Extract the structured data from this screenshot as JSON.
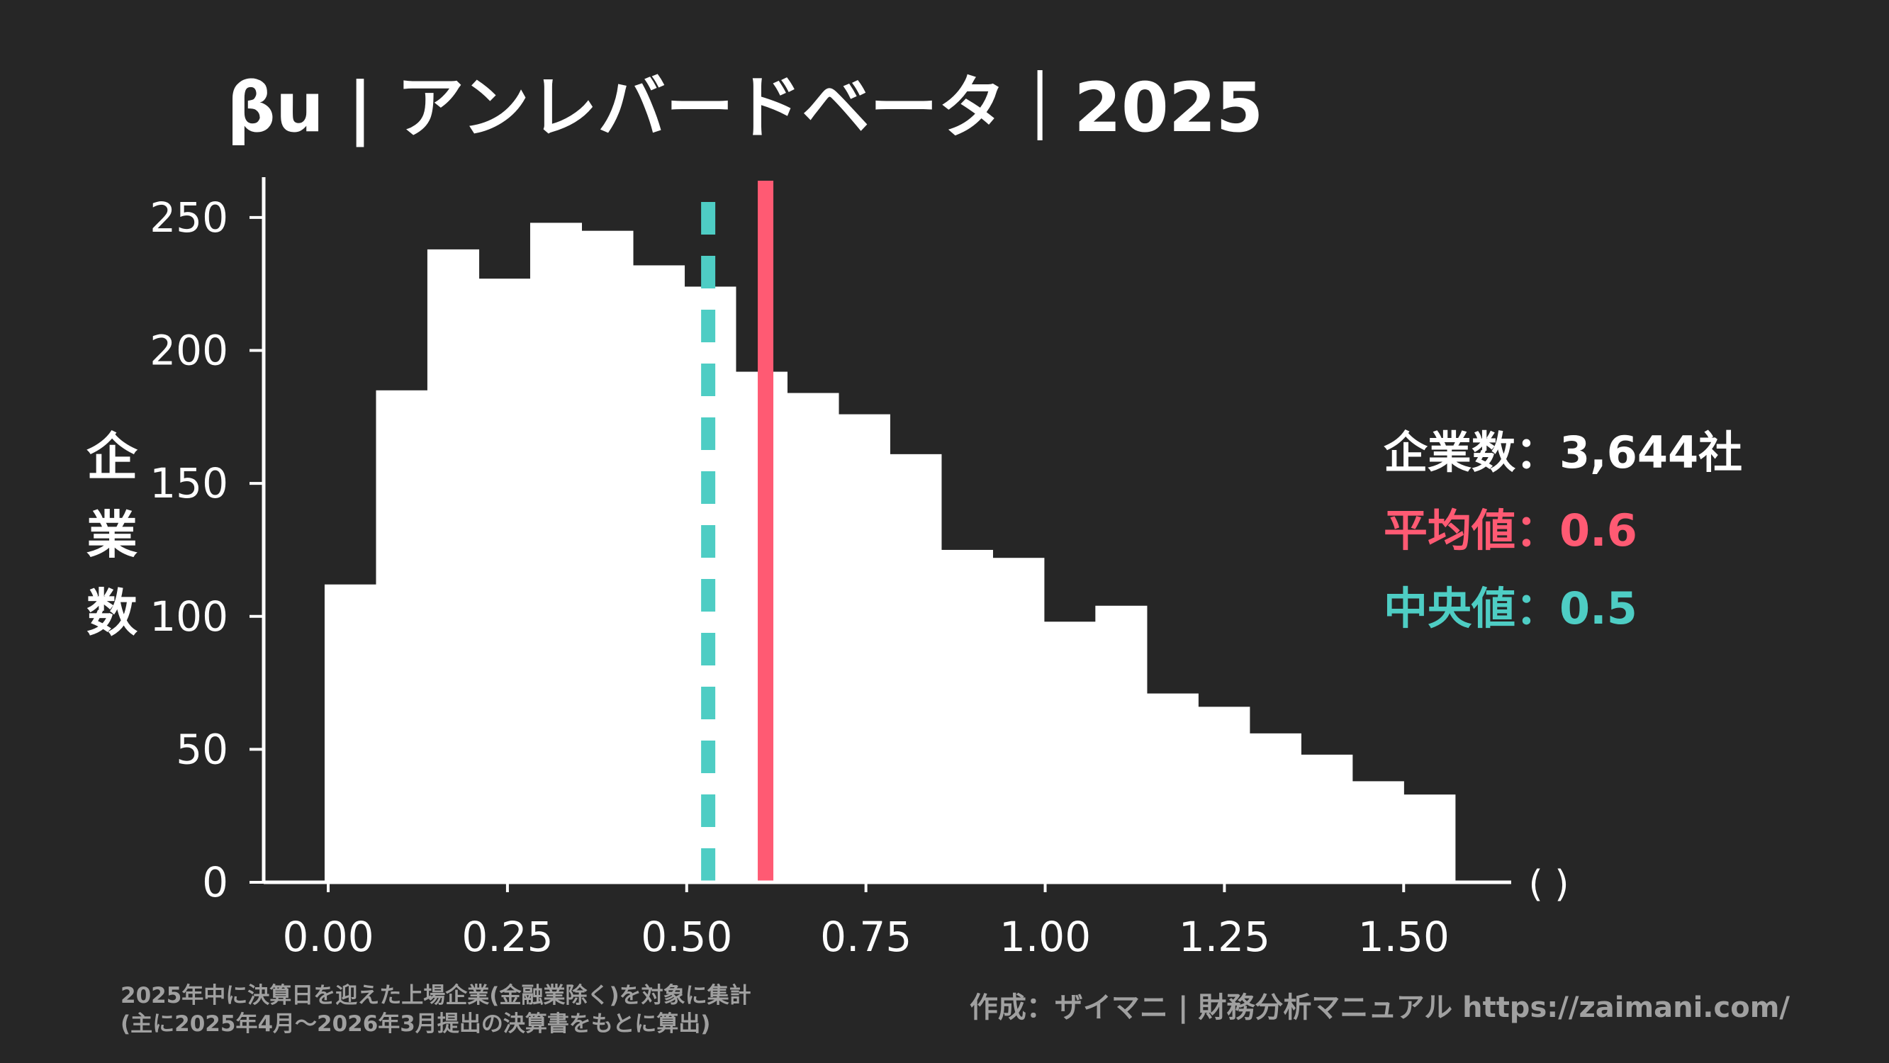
{
  "title": "βu | アンレバードベータ｜2025",
  "stats": {
    "count_label": "企業数：3,644社",
    "mean_label": "平均値：0.6",
    "median_label": "中央値：0.5"
  },
  "colors": {
    "background": "#262626",
    "bars": "#ffffff",
    "mean": "#ff5a73",
    "median": "#4ecdc4",
    "footnote": "#a0a0a0"
  },
  "footnote": {
    "line1": "2025年中に決算日を迎えた上場企業(金融業除く)を対象に集計",
    "line2": "(主に2025年4月～2026年3月提出の決算書をもとに算出)",
    "credit": "作成：ザイマニ | 財務分析マニュアル https://zaimani.com/"
  },
  "chart_data": {
    "type": "bar",
    "subtype": "histogram",
    "ylabel": "企業数",
    "xlabel": "(  )",
    "xlim": [
      -0.09,
      1.65
    ],
    "ylim": [
      0,
      260
    ],
    "xticks": [
      0.0,
      0.25,
      0.5,
      0.75,
      1.0,
      1.25,
      1.5
    ],
    "xtick_labels": [
      "0.00",
      "0.25",
      "0.50",
      "0.75",
      "1.00",
      "1.25",
      "1.50"
    ],
    "yticks": [
      0,
      50,
      100,
      150,
      200,
      250
    ],
    "ytick_labels": [
      "0",
      "50",
      "100",
      "150",
      "200",
      "250"
    ],
    "bin_edges": [
      -0.005,
      0.0667,
      0.1383,
      0.21,
      0.2817,
      0.3533,
      0.425,
      0.4967,
      0.5683,
      0.64,
      0.7117,
      0.7833,
      0.855,
      0.9267,
      0.9983,
      1.07,
      1.1417,
      1.2133,
      1.285,
      1.3567,
      1.4283,
      1.5,
      1.5717
    ],
    "counts": [
      112,
      185,
      238,
      227,
      248,
      245,
      232,
      224,
      192,
      184,
      176,
      161,
      125,
      122,
      98,
      104,
      71,
      66,
      56,
      48,
      38,
      33
    ],
    "mean": 0.61,
    "median": 0.53,
    "grid": false
  }
}
